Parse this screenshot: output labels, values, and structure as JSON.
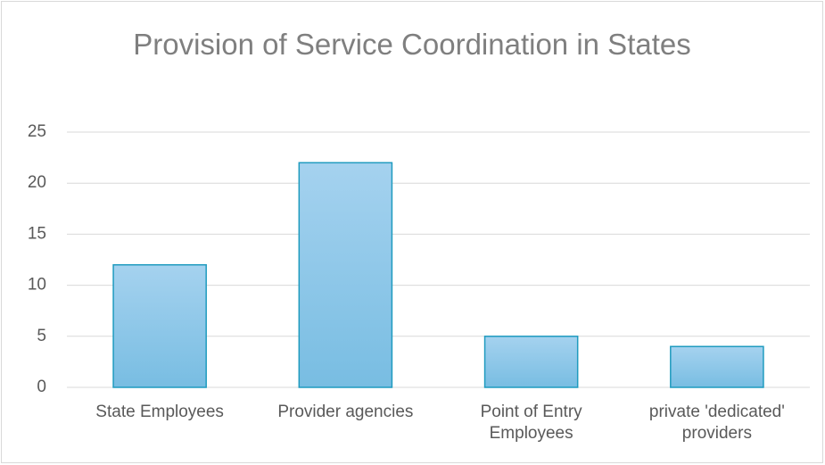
{
  "chart_data": {
    "type": "bar",
    "title": "Provision of Service Coordination in States",
    "categories": [
      "State Employees",
      "Provider agencies",
      "Point of Entry Employees",
      "private 'dedicated' providers"
    ],
    "values": [
      12,
      22,
      5,
      4
    ],
    "color": "#1f9bbf",
    "ylim": [
      0,
      25
    ],
    "yticks": [
      0,
      5,
      10,
      15,
      20,
      25
    ],
    "grid": true
  }
}
